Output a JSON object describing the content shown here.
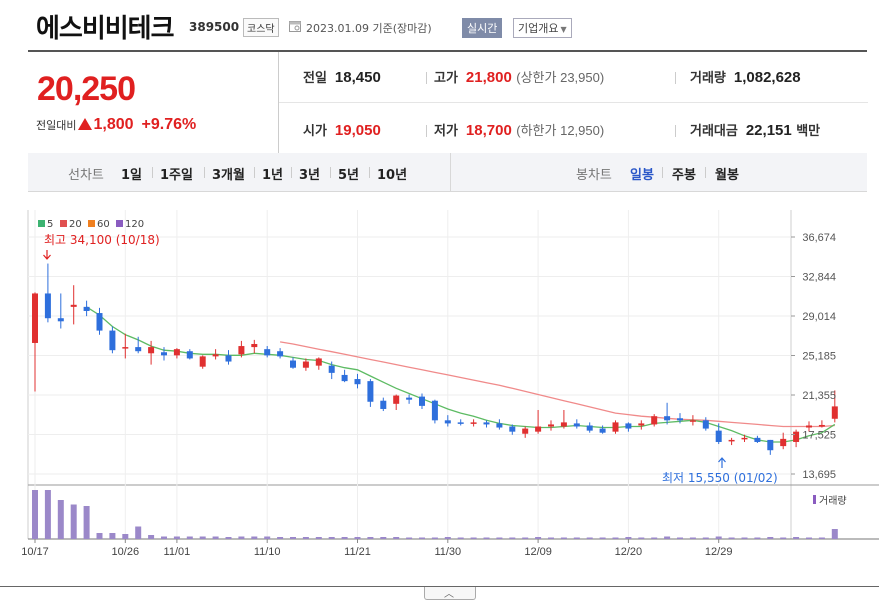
{
  "header": {
    "company_name": "에스비비테크",
    "stock_code": "389500",
    "market": "코스닥",
    "base_date": "2023.01.09 기준(장마감)",
    "realtime_label": "실시간",
    "overview_label": "기업개요"
  },
  "price": {
    "current": "20,250",
    "change_label": "전일대비",
    "change_amount": "1,800",
    "change_rate": "+9.76%"
  },
  "stats": {
    "prev_close": {
      "label": "전일",
      "value": "18,450"
    },
    "high": {
      "label": "고가",
      "value": "21,800",
      "limit": "(상한가 23,950)"
    },
    "volume": {
      "label": "거래량",
      "value": "1,082,628"
    },
    "open": {
      "label": "시가",
      "value": "19,050"
    },
    "low": {
      "label": "저가",
      "value": "18,700",
      "limit": "(하한가 12,950)"
    },
    "trade_value": {
      "label": "거래대금",
      "value": "22,151",
      "unit": "백만"
    }
  },
  "line_chart_tabs": {
    "label": "선차트",
    "items": [
      "1일",
      "1주일",
      "3개월",
      "1년",
      "3년",
      "5년",
      "10년"
    ]
  },
  "candle_chart_tabs": {
    "label": "봉차트",
    "items": [
      "일봉",
      "주봉",
      "월봉"
    ],
    "active": "일봉"
  },
  "chart_data": {
    "type": "candlestick",
    "legend": [
      "5",
      "20",
      "60",
      "120"
    ],
    "legend_colors": [
      "#3cb371",
      "#e05050",
      "#f08020",
      "#8a5cc0"
    ],
    "up_color": "#e03030",
    "down_color": "#2e6fdc",
    "y_ticks": [
      "36,674",
      "32,844",
      "29,014",
      "25,185",
      "21,355",
      "17,525",
      "13,695"
    ],
    "y_tick_values": [
      36674,
      32844,
      29014,
      25185,
      21355,
      17525,
      13695
    ],
    "ylim": [
      13695,
      36674
    ],
    "x_tick_labels": [
      "10/17",
      "10/26",
      "11/01",
      "11/10",
      "11/21",
      "11/30",
      "12/09",
      "12/20",
      "12/29"
    ],
    "x_tick_index": [
      0,
      7,
      11,
      18,
      25,
      32,
      39,
      46,
      53
    ],
    "max_annotation": "최고 34,100 (10/18)",
    "min_annotation": "최저 15,550 (01/02)",
    "volume_label": "거래량",
    "candles": [
      {
        "o": 26400,
        "h": 31300,
        "l": 21700,
        "c": 31200
      },
      {
        "o": 31200,
        "h": 34100,
        "l": 28400,
        "c": 28800
      },
      {
        "o": 28800,
        "h": 31200,
        "l": 27800,
        "c": 28500
      },
      {
        "o": 29900,
        "h": 32000,
        "l": 28200,
        "c": 30100
      },
      {
        "o": 29900,
        "h": 30500,
        "l": 29000,
        "c": 29500
      },
      {
        "o": 29300,
        "h": 29800,
        "l": 27200,
        "c": 27600
      },
      {
        "o": 27600,
        "h": 28000,
        "l": 25400,
        "c": 25700
      },
      {
        "o": 26000,
        "h": 27300,
        "l": 24900,
        "c": 26000
      },
      {
        "o": 26000,
        "h": 27000,
        "l": 25400,
        "c": 25600
      },
      {
        "o": 25400,
        "h": 26600,
        "l": 24300,
        "c": 26000
      },
      {
        "o": 25500,
        "h": 26000,
        "l": 24700,
        "c": 25200
      },
      {
        "o": 25200,
        "h": 25900,
        "l": 24900,
        "c": 25800
      },
      {
        "o": 25600,
        "h": 25800,
        "l": 24800,
        "c": 24900
      },
      {
        "o": 24100,
        "h": 25200,
        "l": 23900,
        "c": 25100
      },
      {
        "o": 25100,
        "h": 25800,
        "l": 24800,
        "c": 25300
      },
      {
        "o": 25200,
        "h": 25700,
        "l": 24300,
        "c": 24600
      },
      {
        "o": 25300,
        "h": 26600,
        "l": 25000,
        "c": 26100
      },
      {
        "o": 26000,
        "h": 26700,
        "l": 25400,
        "c": 26300
      },
      {
        "o": 25800,
        "h": 26100,
        "l": 25000,
        "c": 25200
      },
      {
        "o": 25600,
        "h": 25900,
        "l": 24900,
        "c": 25100
      },
      {
        "o": 24700,
        "h": 25000,
        "l": 23900,
        "c": 24000
      },
      {
        "o": 24000,
        "h": 24900,
        "l": 23700,
        "c": 24600
      },
      {
        "o": 24200,
        "h": 25000,
        "l": 23800,
        "c": 24900
      },
      {
        "o": 24200,
        "h": 24600,
        "l": 22900,
        "c": 23500
      },
      {
        "o": 23300,
        "h": 23800,
        "l": 22600,
        "c": 22700
      },
      {
        "o": 22900,
        "h": 23400,
        "l": 22000,
        "c": 22400
      },
      {
        "o": 22700,
        "h": 22900,
        "l": 20200,
        "c": 20700
      },
      {
        "o": 20800,
        "h": 21100,
        "l": 19800,
        "c": 20000
      },
      {
        "o": 20500,
        "h": 21400,
        "l": 19900,
        "c": 21300
      },
      {
        "o": 21100,
        "h": 21400,
        "l": 20500,
        "c": 20900
      },
      {
        "o": 21200,
        "h": 21500,
        "l": 20000,
        "c": 20300
      },
      {
        "o": 20800,
        "h": 20900,
        "l": 18600,
        "c": 18900
      },
      {
        "o": 18900,
        "h": 19400,
        "l": 18300,
        "c": 18600
      },
      {
        "o": 18700,
        "h": 19000,
        "l": 18400,
        "c": 18600
      },
      {
        "o": 18600,
        "h": 19000,
        "l": 18300,
        "c": 18700
      },
      {
        "o": 18700,
        "h": 18900,
        "l": 18200,
        "c": 18500
      },
      {
        "o": 18600,
        "h": 19000,
        "l": 18000,
        "c": 18200
      },
      {
        "o": 18300,
        "h": 18500,
        "l": 17500,
        "c": 17800
      },
      {
        "o": 17600,
        "h": 18300,
        "l": 17200,
        "c": 18100
      },
      {
        "o": 17800,
        "h": 19900,
        "l": 17600,
        "c": 18300
      },
      {
        "o": 18300,
        "h": 18900,
        "l": 17900,
        "c": 18500
      },
      {
        "o": 18300,
        "h": 19900,
        "l": 18100,
        "c": 18700
      },
      {
        "o": 18600,
        "h": 19000,
        "l": 18100,
        "c": 18300
      },
      {
        "o": 18400,
        "h": 18700,
        "l": 17700,
        "c": 17900
      },
      {
        "o": 18100,
        "h": 18400,
        "l": 17600,
        "c": 17700
      },
      {
        "o": 17800,
        "h": 18900,
        "l": 17600,
        "c": 18700
      },
      {
        "o": 18600,
        "h": 18700,
        "l": 17800,
        "c": 18100
      },
      {
        "o": 18400,
        "h": 18900,
        "l": 18000,
        "c": 18600
      },
      {
        "o": 18500,
        "h": 19500,
        "l": 18300,
        "c": 19300
      },
      {
        "o": 19300,
        "h": 20600,
        "l": 18500,
        "c": 18900
      },
      {
        "o": 19100,
        "h": 19600,
        "l": 18600,
        "c": 18900
      },
      {
        "o": 18800,
        "h": 19400,
        "l": 18400,
        "c": 18900
      },
      {
        "o": 18900,
        "h": 19200,
        "l": 17900,
        "c": 18100
      },
      {
        "o": 17900,
        "h": 18600,
        "l": 16600,
        "c": 16800
      },
      {
        "o": 16900,
        "h": 17200,
        "l": 16500,
        "c": 17000
      },
      {
        "o": 17200,
        "h": 17500,
        "l": 16800,
        "c": 17200
      },
      {
        "o": 17200,
        "h": 17400,
        "l": 16700,
        "c": 16800
      },
      {
        "o": 17000,
        "h": 17000,
        "l": 15550,
        "c": 16000
      },
      {
        "o": 16400,
        "h": 17700,
        "l": 16100,
        "c": 17100
      },
      {
        "o": 16800,
        "h": 18000,
        "l": 16300,
        "c": 17800
      },
      {
        "o": 18200,
        "h": 18800,
        "l": 17800,
        "c": 18400
      },
      {
        "o": 18300,
        "h": 18900,
        "l": 18200,
        "c": 18450
      },
      {
        "o": 19050,
        "h": 21800,
        "l": 18700,
        "c": 20250
      }
    ],
    "ma5": [
      null,
      null,
      null,
      null,
      29900,
      29100,
      28000,
      27200,
      26700,
      26100,
      25700,
      25600,
      25400,
      25300,
      25300,
      25200,
      25200,
      25400,
      25300,
      25200,
      25000,
      24800,
      24700,
      24300,
      24000,
      23800,
      23200,
      22600,
      22000,
      21500,
      21000,
      20500,
      20000,
      19600,
      19300,
      18900,
      18600,
      18400,
      18300,
      18200,
      18200,
      18300,
      18400,
      18300,
      18200,
      18200,
      18300,
      18300,
      18600,
      18700,
      18800,
      18900,
      18700,
      18300,
      17900,
      17400,
      17000,
      16800,
      16800,
      17000,
      17400,
      17700,
      18500
    ],
    "ma20": [
      null,
      null,
      null,
      null,
      null,
      null,
      null,
      null,
      null,
      null,
      null,
      null,
      null,
      null,
      null,
      null,
      null,
      null,
      null,
      26500,
      26300,
      26050,
      25800,
      25550,
      25300,
      25050,
      24800,
      24550,
      24300,
      24050,
      23800,
      23550,
      23300,
      23050,
      22800,
      22550,
      22300,
      22000,
      21700,
      21400,
      21100,
      20800,
      20500,
      20200,
      19900,
      19600,
      19450,
      19300,
      19200,
      19100,
      19000,
      18950,
      18900,
      18800,
      18700,
      18600,
      18500,
      18400,
      18300,
      18300,
      18300,
      18300,
      18400
    ],
    "volume_scale": [
      0.98,
      0.98,
      0.78,
      0.69,
      0.66,
      0.12,
      0.12,
      0.1,
      0.25,
      0.08,
      0.05,
      0.05,
      0.05,
      0.05,
      0.05,
      0.04,
      0.05,
      0.05,
      0.05,
      0.04,
      0.04,
      0.04,
      0.04,
      0.04,
      0.04,
      0.04,
      0.04,
      0.04,
      0.04,
      0.03,
      0.03,
      0.03,
      0.04,
      0.03,
      0.03,
      0.03,
      0.03,
      0.03,
      0.03,
      0.04,
      0.03,
      0.03,
      0.03,
      0.03,
      0.03,
      0.03,
      0.04,
      0.03,
      0.03,
      0.05,
      0.03,
      0.03,
      0.03,
      0.05,
      0.03,
      0.03,
      0.03,
      0.04,
      0.03,
      0.04,
      0.03,
      0.03,
      0.2
    ]
  }
}
